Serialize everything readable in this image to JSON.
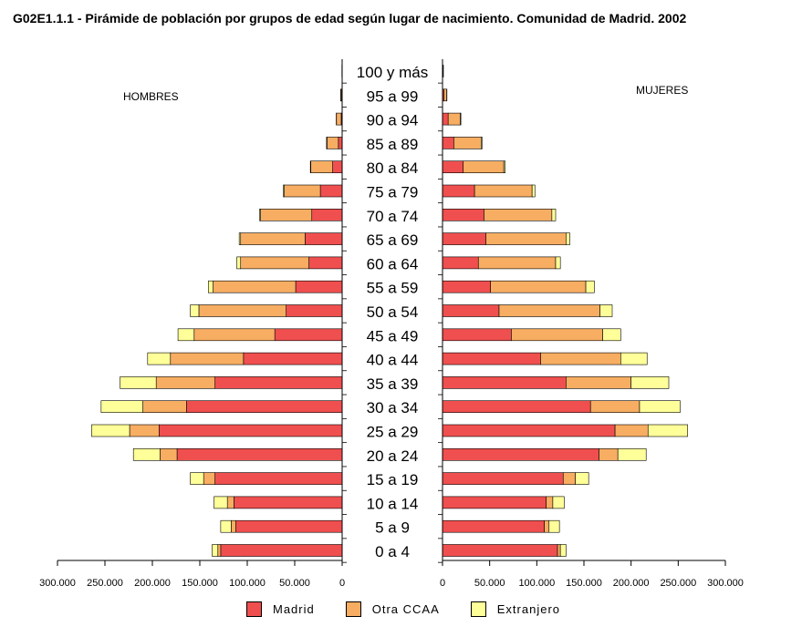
{
  "title": "G02E1.1.1 - Pirámide de población por grupos de edad según lugar de nacimiento. Comunidad de Madrid. 2002",
  "chart_data": {
    "type": "bar",
    "orientation": "horizontal-pyramid",
    "categories": [
      "0 a 4",
      "5 a 9",
      "10 a 14",
      "15 a 19",
      "20 a 24",
      "25 a 29",
      "30 a 34",
      "35 a 39",
      "40 a 44",
      "45 a 49",
      "50 a 54",
      "55 a 59",
      "60 a 64",
      "65 a 69",
      "70 a 74",
      "75 a 79",
      "80 a 84",
      "85 a 89",
      "90 a 94",
      "95 a 99",
      "100 y más"
    ],
    "left_label": "HOMBRES",
    "right_label": "MUJERES",
    "xlim": [
      0,
      300000
    ],
    "ticks": [
      0,
      50000,
      100000,
      150000,
      200000,
      250000,
      300000
    ],
    "tick_labels": [
      "0",
      "50.000",
      "100.000",
      "150.000",
      "200.000",
      "250.000",
      "300.000"
    ],
    "series_names": [
      "Madrid",
      "Otra CCAA",
      "Extranjero"
    ],
    "colors": {
      "Madrid": "#f04f4f",
      "Otra CCAA": "#f7ad62",
      "Extranjero": "#ffff99"
    },
    "hombres": {
      "Madrid": [
        128000,
        112000,
        114000,
        134000,
        174000,
        193000,
        164000,
        134000,
        104000,
        71000,
        59000,
        49000,
        35000,
        39000,
        32000,
        23000,
        10000,
        4000,
        1000,
        500,
        100
      ],
      "Otra CCAA": [
        3000,
        5000,
        7000,
        12000,
        18000,
        31000,
        46000,
        62000,
        77000,
        85000,
        92000,
        87000,
        72000,
        68000,
        54000,
        38000,
        23000,
        12000,
        5000,
        1000,
        200
      ],
      "Extranjero": [
        6000,
        11000,
        14000,
        14000,
        28000,
        40000,
        44000,
        38000,
        24000,
        17000,
        9000,
        5000,
        4000,
        1500,
        1000,
        1000,
        500,
        500,
        200,
        100,
        0
      ]
    },
    "mujeres": {
      "Madrid": [
        122000,
        108000,
        110000,
        128000,
        166000,
        183000,
        157000,
        131000,
        104000,
        73000,
        60000,
        51000,
        38000,
        46000,
        44000,
        34000,
        22000,
        12000,
        6000,
        1500,
        300
      ],
      "Otra CCAA": [
        3000,
        5000,
        7000,
        13000,
        20000,
        35000,
        52000,
        69000,
        85000,
        97000,
        107000,
        101000,
        82000,
        85000,
        72000,
        61000,
        43000,
        29000,
        13000,
        3000,
        500
      ],
      "Extranjero": [
        6000,
        11000,
        12000,
        14000,
        30000,
        42000,
        43000,
        40000,
        28000,
        19000,
        13000,
        9000,
        5000,
        4000,
        4000,
        3000,
        1500,
        1000,
        500,
        200,
        100
      ]
    }
  },
  "legend": [
    {
      "label": "Madrid"
    },
    {
      "label": "Otra CCAA"
    },
    {
      "label": "Extranjero"
    }
  ]
}
